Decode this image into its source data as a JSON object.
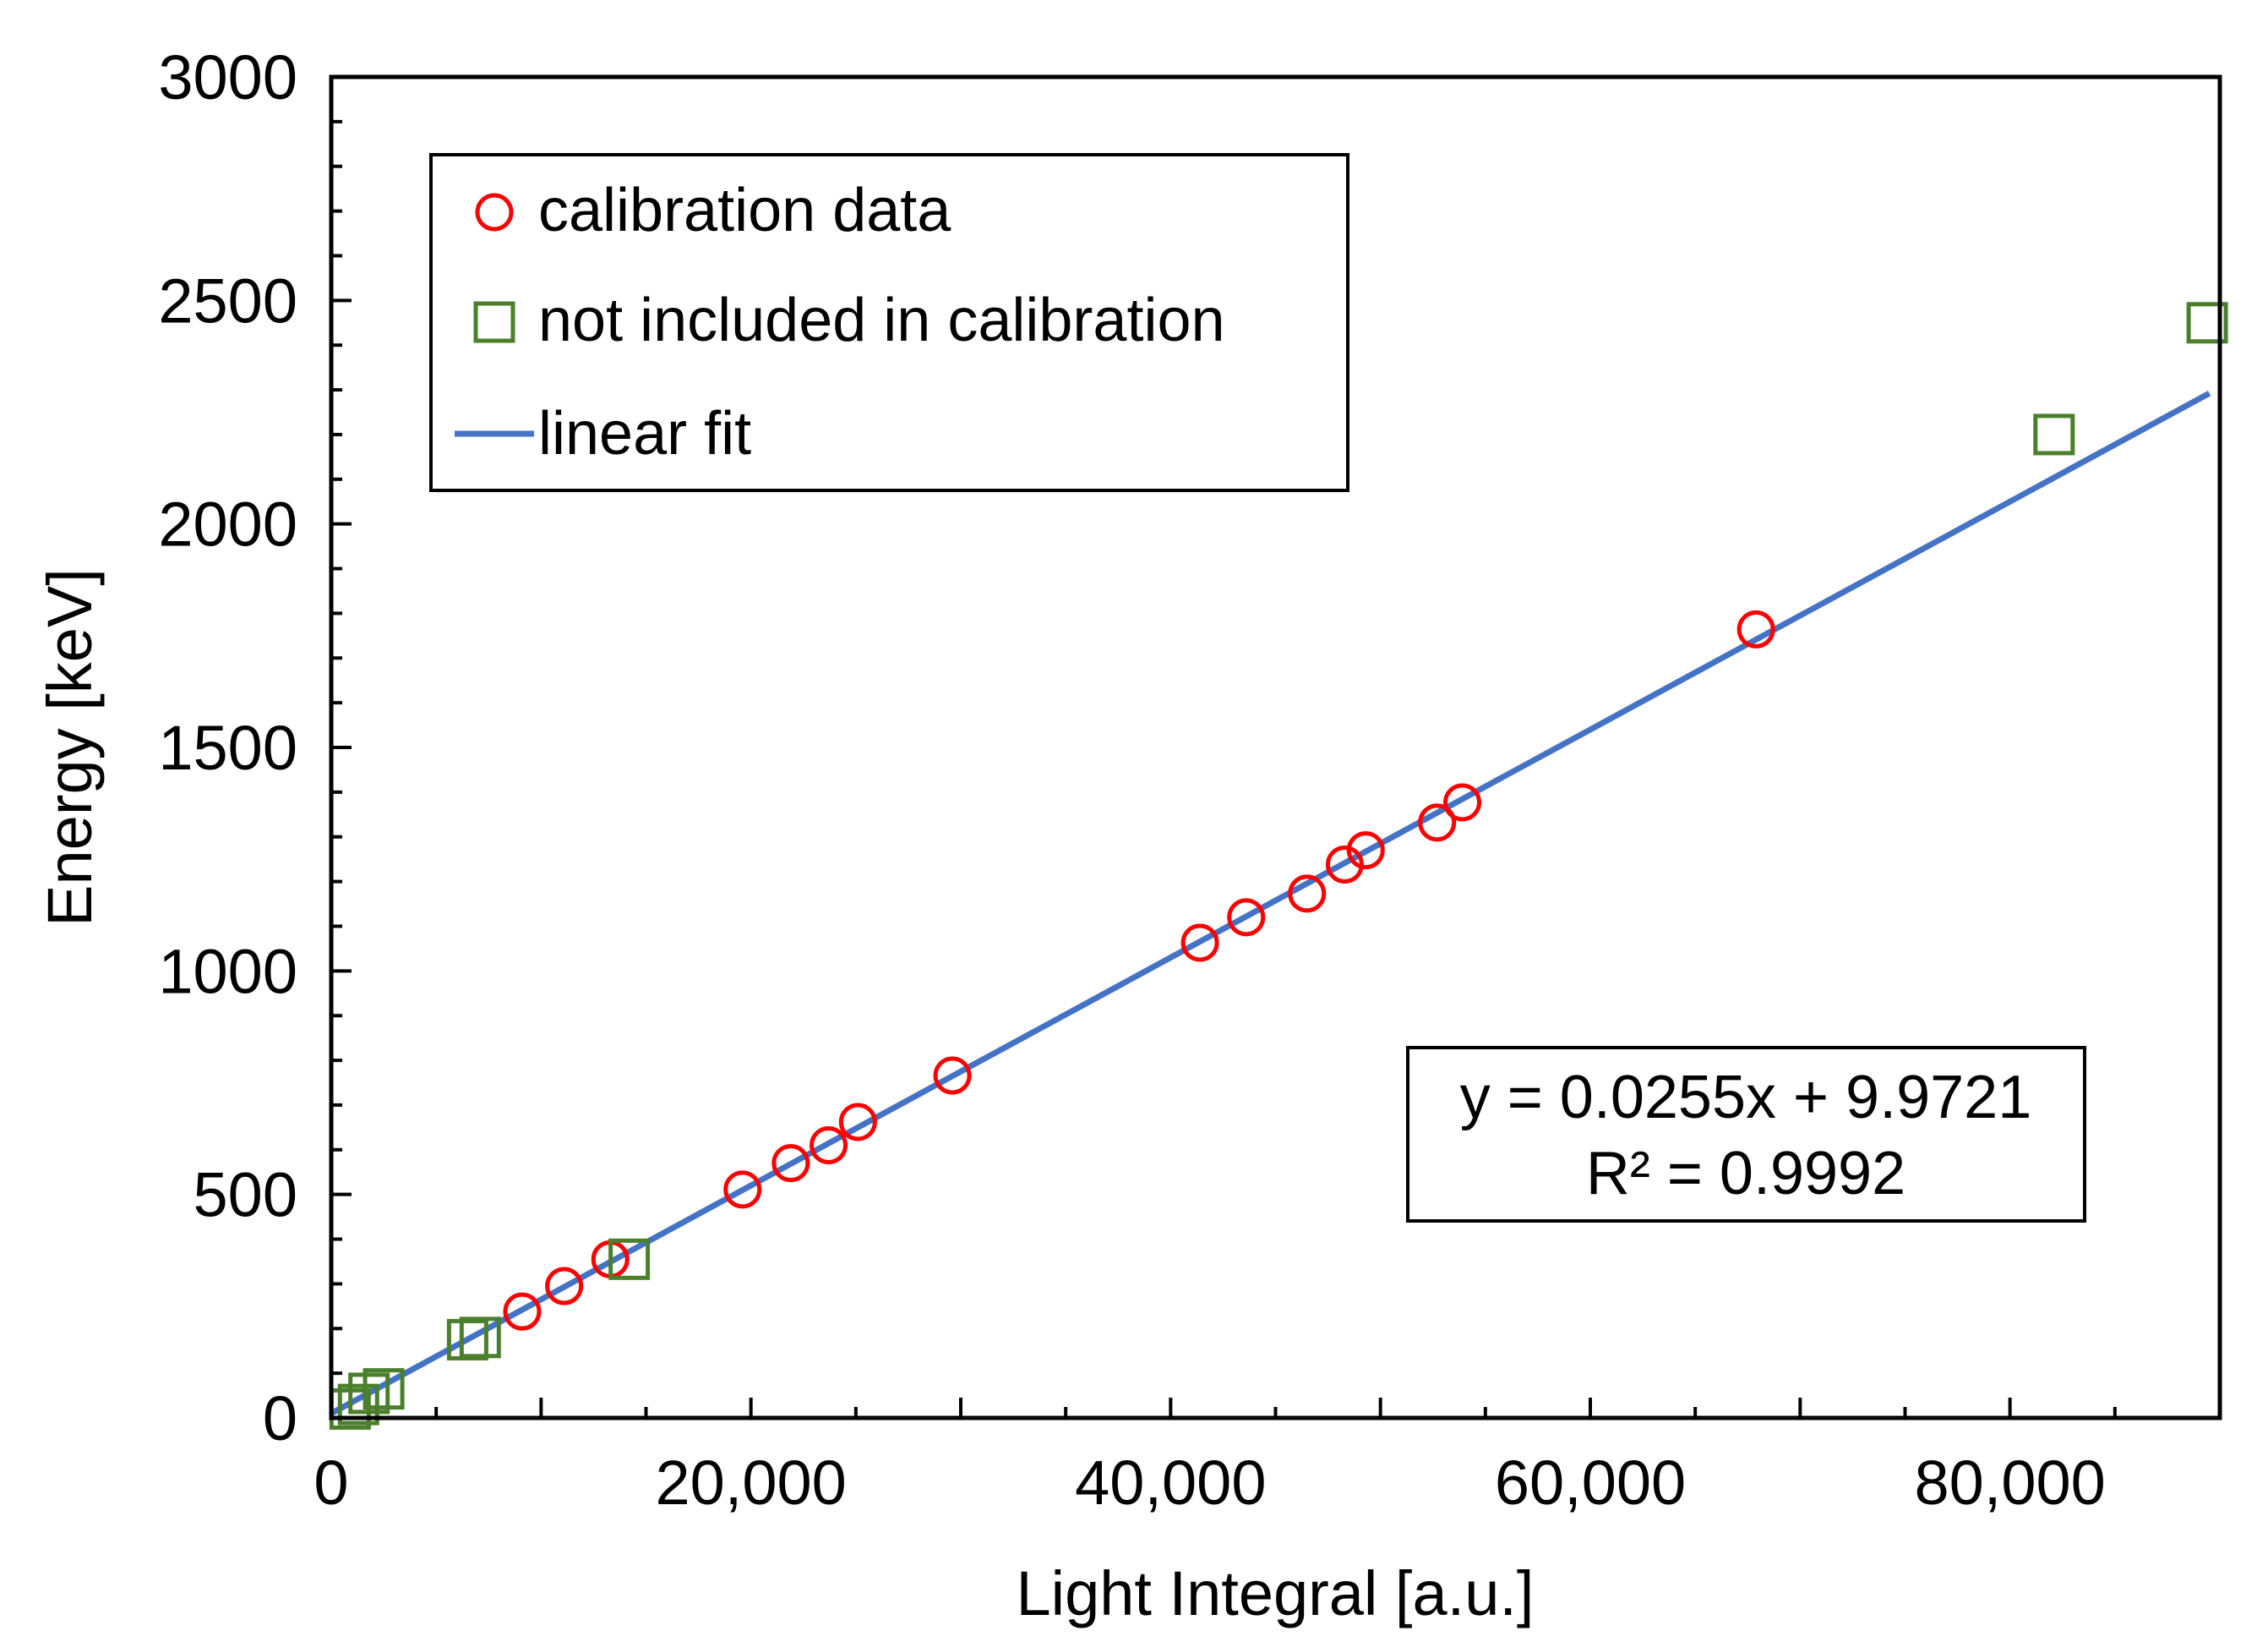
{
  "colors": {
    "calibration": "#ff0000",
    "excluded": "#4a7f2c",
    "fit": "#4472c4",
    "axis": "#000000"
  },
  "chart_data": {
    "type": "scatter",
    "title": "",
    "xlabel": "Light Integral [a.u.]",
    "ylabel": "Energy [keV]",
    "xlim": [
      0,
      90000
    ],
    "ylim": [
      0,
      3000
    ],
    "xticks": [
      0,
      20000,
      40000,
      60000,
      80000
    ],
    "xtick_labels": [
      "0",
      "20,000",
      "40,000",
      "60,000",
      "80,000"
    ],
    "yticks": [
      0,
      500,
      1000,
      1500,
      2000,
      2500,
      3000
    ],
    "ytick_labels": [
      "0",
      "500",
      "1000",
      "1500",
      "2000",
      "2500",
      "3000"
    ],
    "grid": false,
    "legend_position": "top-left",
    "series": [
      {
        "name": "calibration data",
        "marker": "circle",
        "x": [
          9100,
          11100,
          13300,
          19600,
          21900,
          23700,
          25100,
          29600,
          41400,
          43600,
          46500,
          48300,
          49300,
          52700,
          53900,
          67900
        ],
        "y": [
          238,
          295,
          355,
          511,
          570,
          610,
          662,
          766,
          1063,
          1120,
          1173,
          1238,
          1270,
          1332,
          1377,
          1764
        ]
      },
      {
        "name": "not included in calibration",
        "marker": "square",
        "x": [
          900,
          1300,
          1800,
          2500,
          6500,
          7100,
          14200,
          82100,
          89400
        ],
        "y": [
          20,
          30,
          55,
          65,
          175,
          180,
          355,
          2200,
          2450
        ]
      }
    ],
    "fit": {
      "name": "linear fit",
      "slope": 0.0255,
      "intercept": 9.9721,
      "x_range": [
        0,
        89500
      ]
    },
    "annotation": {
      "equation": "y = 0.0255x + 9.9721",
      "r_squared": "R² = 0.9992"
    }
  }
}
